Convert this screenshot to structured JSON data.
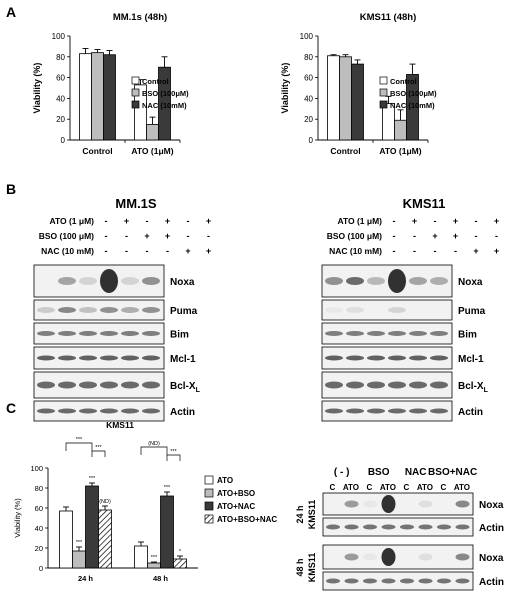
{
  "panels": {
    "A": "A",
    "B": "B",
    "C": "C"
  },
  "colors": {
    "control": "#ffffff",
    "bso": "#bdbdbd",
    "nac": "#3a3a3a",
    "atobso_c": "#bdbdbd",
    "hatch": "#000000"
  },
  "chart_data": [
    {
      "type": "bar",
      "title": "MM.1s (48h)",
      "ylabel": "Viability (%)",
      "categories": [
        "Control",
        "ATO (1μM)"
      ],
      "ylim": [
        0,
        100
      ],
      "yticks": [
        "0",
        "20",
        "40",
        "60",
        "80",
        "100"
      ],
      "series": [
        {
          "name": "Control",
          "values": [
            83,
            53
          ],
          "errors": [
            5,
            5
          ]
        },
        {
          "name": "BSO (100μM)",
          "values": [
            84,
            15
          ],
          "errors": [
            3,
            7
          ]
        },
        {
          "name": "NAC (10mM)",
          "values": [
            82,
            70
          ],
          "errors": [
            4,
            10
          ]
        }
      ]
    },
    {
      "type": "bar",
      "title": "KMS11 (48h)",
      "ylabel": "Viability (%)",
      "categories": [
        "Control",
        "ATO (1μM)"
      ],
      "ylim": [
        0,
        100
      ],
      "yticks": [
        "0",
        "20",
        "40",
        "60",
        "80",
        "100"
      ],
      "series": [
        {
          "name": "Control",
          "values": [
            81,
            35
          ],
          "errors": [
            1,
            7
          ]
        },
        {
          "name": "BSO (100μM)",
          "values": [
            80,
            19
          ],
          "errors": [
            2,
            10
          ]
        },
        {
          "name": "NAC (10mM)",
          "values": [
            73,
            63
          ],
          "errors": [
            4,
            10
          ]
        }
      ]
    },
    {
      "type": "bar",
      "title": "KMS11",
      "ylabel": "Viability (%)",
      "categories": [
        "24 h",
        "48 h"
      ],
      "ylim": [
        0,
        100
      ],
      "yticks": [
        "0",
        "10",
        "20",
        "30",
        "40",
        "50",
        "60",
        "70",
        "80",
        "90",
        "100"
      ],
      "series": [
        {
          "name": "ATO",
          "values": [
            57,
            22
          ],
          "errors": [
            4,
            4
          ]
        },
        {
          "name": "ATO+BSO",
          "values": [
            17,
            5
          ],
          "errors": [
            4,
            1
          ]
        },
        {
          "name": "ATO+NAC",
          "values": [
            82,
            72
          ],
          "errors": [
            3,
            4
          ]
        },
        {
          "name": "ATO+BSO+NAC",
          "values": [
            58,
            9
          ],
          "errors": [
            4,
            3
          ]
        }
      ],
      "annotations": {
        "24h": {
          "ATO+BSO": "***",
          "ATO+NAC": "***",
          "ATO+BSO+NAC": "(ND)",
          "bracket1": "***",
          "bracket2": "***"
        },
        "48h": {
          "ATO+BSO": "***",
          "ATO+NAC": "***",
          "ATO+BSO+NAC": "*",
          "bracket1": "(ND)",
          "bracket2": "***"
        }
      }
    }
  ],
  "panel_b": {
    "left": {
      "title": "MM.1S",
      "treatments": [
        {
          "label": "ATO (1 μM)",
          "signs": [
            "-",
            "+",
            "-",
            "+",
            "-",
            "+"
          ]
        },
        {
          "label": "BSO (100 μM)",
          "signs": [
            "-",
            "-",
            "+",
            "+",
            "-",
            "-"
          ]
        },
        {
          "label": "NAC (10 mM)",
          "signs": [
            "-",
            "-",
            "-",
            "-",
            "+",
            "+"
          ]
        }
      ]
    },
    "right": {
      "title": "KMS11",
      "treatments": [
        {
          "label": "ATO (1 μM)",
          "signs": [
            "-",
            "+",
            "-",
            "+",
            "-",
            "+"
          ]
        },
        {
          "label": "BSO (100 μM)",
          "signs": [
            "-",
            "-",
            "+",
            "+",
            "-",
            "-"
          ]
        },
        {
          "label": "NAC (10 mM)",
          "signs": [
            "-",
            "-",
            "-",
            "-",
            "+",
            "+"
          ]
        }
      ]
    },
    "proteins": [
      "Noxa",
      "Puma",
      "Bim",
      "Mcl-1",
      "Bcl-X",
      "Actin"
    ],
    "bcl_sub": "L"
  },
  "panel_c_blot": {
    "groups": [
      "( - )",
      "BSO",
      "NAC",
      "BSO+NAC"
    ],
    "lanes": [
      "C",
      "ATO",
      "C",
      "ATO",
      "C",
      "ATO",
      "C",
      "ATO"
    ],
    "rows": [
      {
        "time": "24 h",
        "cell": "KMS11",
        "proteins": [
          "Noxa",
          "Actin"
        ]
      },
      {
        "time": "48 h",
        "cell": "KMS11",
        "proteins": [
          "Noxa",
          "Actin"
        ]
      }
    ]
  }
}
